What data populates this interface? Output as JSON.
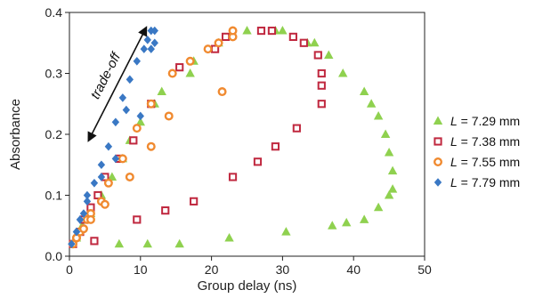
{
  "chart_data": {
    "type": "scatter",
    "xlabel": "Group delay (ns)",
    "ylabel": "Absorbance",
    "xlim": [
      0,
      50
    ],
    "ylim": [
      0,
      0.4
    ],
    "xticks": [
      0,
      10,
      20,
      30,
      40,
      50
    ],
    "yticks": [
      0,
      0.1,
      0.2,
      0.3,
      0.4
    ],
    "xtick_labels": [
      "0",
      "10",
      "20",
      "30",
      "40",
      "50"
    ],
    "ytick_labels": [
      "0.0",
      "0.1",
      "0.2",
      "0.3",
      "0.4"
    ],
    "grid": false,
    "legend_position": "right",
    "annotation": {
      "text": "trade-off",
      "arrow_from": [
        2.7,
        0.19
      ],
      "arrow_to": [
        10.8,
        0.375
      ]
    },
    "series": [
      {
        "name": "L = 7.29 mm",
        "legend_var": "L",
        "legend_rest": " = 7.29 mm",
        "marker": "triangle",
        "color": "#8fd14f",
        "points": [
          [
            1.0,
            0.03
          ],
          [
            1.8,
            0.05
          ],
          [
            3.0,
            0.07
          ],
          [
            4.5,
            0.1
          ],
          [
            6.0,
            0.13
          ],
          [
            7.5,
            0.16
          ],
          [
            8.5,
            0.19
          ],
          [
            10.0,
            0.22
          ],
          [
            12.0,
            0.25
          ],
          [
            13.0,
            0.27
          ],
          [
            17.0,
            0.3
          ],
          [
            17.5,
            0.32
          ],
          [
            21.0,
            0.35
          ],
          [
            25.0,
            0.37
          ],
          [
            29.0,
            0.37
          ],
          [
            30.0,
            0.37
          ],
          [
            33.5,
            0.35
          ],
          [
            34.5,
            0.35
          ],
          [
            36.5,
            0.33
          ],
          [
            38.5,
            0.3
          ],
          [
            41.5,
            0.27
          ],
          [
            42.5,
            0.25
          ],
          [
            43.5,
            0.23
          ],
          [
            44.5,
            0.2
          ],
          [
            45.0,
            0.17
          ],
          [
            45.5,
            0.14
          ],
          [
            45.5,
            0.11
          ],
          [
            45.0,
            0.1
          ],
          [
            43.5,
            0.08
          ],
          [
            41.5,
            0.06
          ],
          [
            39.0,
            0.055
          ],
          [
            37.0,
            0.05
          ],
          [
            30.5,
            0.04
          ],
          [
            22.5,
            0.03
          ],
          [
            15.5,
            0.02
          ],
          [
            11.0,
            0.02
          ],
          [
            7.0,
            0.02
          ]
        ]
      },
      {
        "name": "L = 7.38 mm",
        "legend_var": "L",
        "legend_rest": " = 7.38 mm",
        "marker": "square",
        "color": "#c0283f",
        "points": [
          [
            0.5,
            0.02
          ],
          [
            1.5,
            0.04
          ],
          [
            2.0,
            0.06
          ],
          [
            3.0,
            0.08
          ],
          [
            4.0,
            0.1
          ],
          [
            5.0,
            0.13
          ],
          [
            7.0,
            0.16
          ],
          [
            9.0,
            0.19
          ],
          [
            11.5,
            0.25
          ],
          [
            15.5,
            0.31
          ],
          [
            20.5,
            0.34
          ],
          [
            22.0,
            0.36
          ],
          [
            27.0,
            0.37
          ],
          [
            28.5,
            0.37
          ],
          [
            31.5,
            0.36
          ],
          [
            33.0,
            0.35
          ],
          [
            35.0,
            0.33
          ],
          [
            35.5,
            0.3
          ],
          [
            35.5,
            0.28
          ],
          [
            35.5,
            0.25
          ],
          [
            32.0,
            0.21
          ],
          [
            29.0,
            0.18
          ],
          [
            26.5,
            0.155
          ],
          [
            23.0,
            0.13
          ],
          [
            17.5,
            0.09
          ],
          [
            13.5,
            0.075
          ],
          [
            9.5,
            0.06
          ],
          [
            3.5,
            0.025
          ]
        ]
      },
      {
        "name": "L = 7.55 mm",
        "legend_var": "L",
        "legend_rest": " = 7.55 mm",
        "marker": "circle",
        "color": "#f08a30",
        "points": [
          [
            0.5,
            0.02
          ],
          [
            1.0,
            0.03
          ],
          [
            1.5,
            0.04
          ],
          [
            2.5,
            0.06
          ],
          [
            3.0,
            0.07
          ],
          [
            4.5,
            0.09
          ],
          [
            5.5,
            0.12
          ],
          [
            7.5,
            0.16
          ],
          [
            9.5,
            0.21
          ],
          [
            11.5,
            0.25
          ],
          [
            14.5,
            0.3
          ],
          [
            17.0,
            0.32
          ],
          [
            19.5,
            0.34
          ],
          [
            21.0,
            0.35
          ],
          [
            23.0,
            0.36
          ],
          [
            23.0,
            0.37
          ],
          [
            21.5,
            0.27
          ],
          [
            14.0,
            0.23
          ],
          [
            11.5,
            0.18
          ],
          [
            8.5,
            0.13
          ],
          [
            5.0,
            0.085
          ],
          [
            3.0,
            0.06
          ],
          [
            2.0,
            0.045
          ],
          [
            1.0,
            0.03
          ]
        ]
      },
      {
        "name": "L = 7.79 mm",
        "legend_var": "L",
        "legend_rest": " = 7.79 mm",
        "marker": "diamond",
        "color": "#3a78c4",
        "points": [
          [
            0.3,
            0.02
          ],
          [
            1.0,
            0.04
          ],
          [
            1.5,
            0.06
          ],
          [
            2.0,
            0.07
          ],
          [
            2.5,
            0.09
          ],
          [
            3.5,
            0.12
          ],
          [
            4.5,
            0.15
          ],
          [
            5.5,
            0.18
          ],
          [
            6.5,
            0.22
          ],
          [
            7.5,
            0.26
          ],
          [
            8.5,
            0.29
          ],
          [
            9.5,
            0.32
          ],
          [
            10.5,
            0.34
          ],
          [
            11.0,
            0.355
          ],
          [
            11.5,
            0.37
          ],
          [
            12.0,
            0.37
          ],
          [
            12.0,
            0.35
          ],
          [
            11.5,
            0.34
          ],
          [
            10.0,
            0.23
          ],
          [
            8.0,
            0.24
          ],
          [
            6.5,
            0.16
          ],
          [
            4.5,
            0.13
          ],
          [
            2.5,
            0.1
          ],
          [
            1.5,
            0.06
          ],
          [
            1.0,
            0.04
          ]
        ]
      }
    ]
  }
}
